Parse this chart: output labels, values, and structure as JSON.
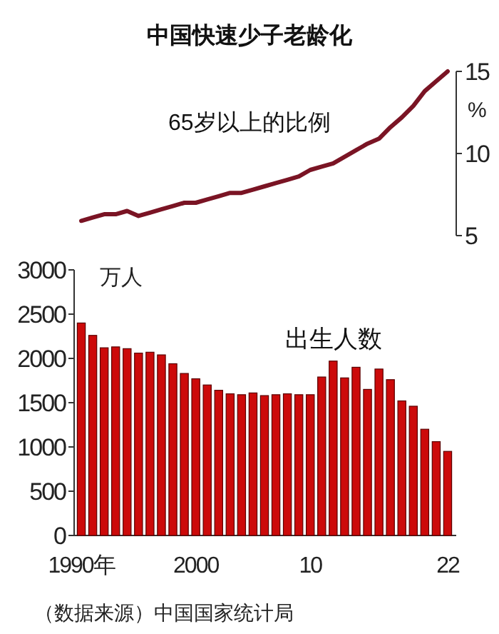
{
  "chart_data": [
    {
      "type": "line",
      "title": "中国快速少子老龄化",
      "ylabel": "%",
      "tick_labels": "y",
      "grid": false,
      "marker": "none",
      "line_style": "solid",
      "categories": [
        null,
        null,
        null,
        null,
        null,
        null,
        null,
        null,
        null,
        null,
        null,
        null,
        null,
        null,
        null,
        null,
        null,
        null,
        null,
        null,
        null,
        null,
        null,
        null,
        null,
        null,
        null,
        null,
        null,
        null,
        null,
        null,
        null
      ],
      "ylim": [
        5,
        15
      ],
      "yticks": [
        5,
        10,
        15
      ],
      "series": [
        {
          "name": "65岁以上的比例",
          "color": "#7a1424",
          "values": [
            5.9,
            6.1,
            6.3,
            6.3,
            6.5,
            6.2,
            6.4,
            6.6,
            6.8,
            7.0,
            7.0,
            7.2,
            7.4,
            7.6,
            7.6,
            7.8,
            8.0,
            8.2,
            8.4,
            8.6,
            9.0,
            9.2,
            9.4,
            9.8,
            10.2,
            10.6,
            10.9,
            11.6,
            12.2,
            12.9,
            13.8,
            14.4,
            15.0
          ]
        }
      ]
    },
    {
      "type": "bar",
      "ylabel": "万人",
      "grid": false,
      "categories": [
        "1990年",
        null,
        null,
        null,
        null,
        null,
        null,
        null,
        null,
        null,
        "2000",
        null,
        null,
        null,
        null,
        null,
        null,
        null,
        null,
        null,
        "10",
        null,
        null,
        null,
        null,
        null,
        null,
        null,
        null,
        null,
        null,
        null,
        "22"
      ],
      "ylim": [
        0,
        3000
      ],
      "yticks": [
        0,
        500,
        1000,
        1500,
        2000,
        2500,
        3000
      ],
      "series": [
        {
          "name": "出生人数",
          "color": "#cc0a0a",
          "values": [
            2400,
            2260,
            2120,
            2130,
            2110,
            2060,
            2070,
            2040,
            1940,
            1830,
            1770,
            1700,
            1640,
            1600,
            1590,
            1610,
            1580,
            1590,
            1600,
            1590,
            1590,
            1790,
            1970,
            1780,
            1900,
            1650,
            1880,
            1760,
            1520,
            1460,
            1200,
            1060,
            950
          ]
        }
      ],
      "annotations": [
        "（数据来源）中国国家统计局"
      ]
    }
  ]
}
